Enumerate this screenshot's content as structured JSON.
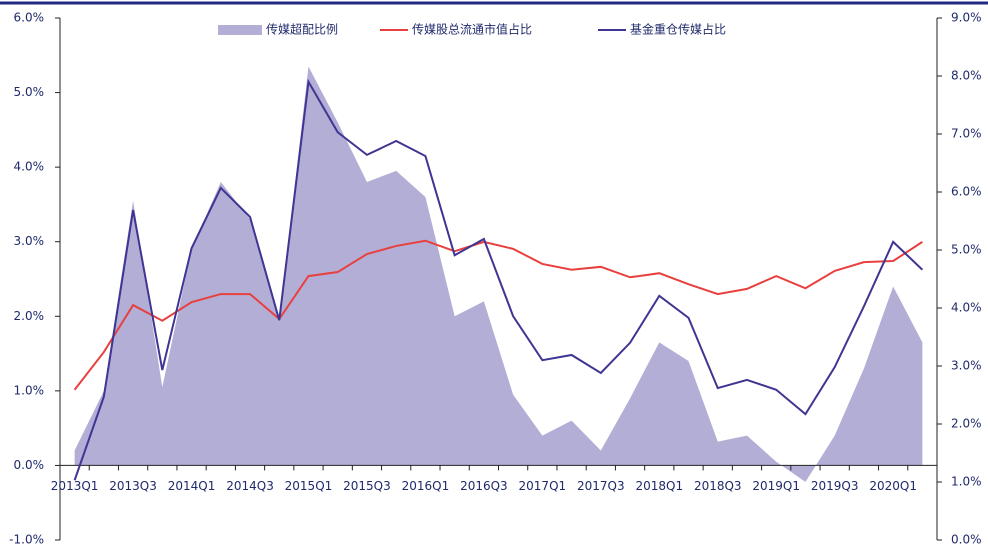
{
  "chart_data": {
    "type": "line",
    "categories": [
      "2013Q1",
      null,
      "2013Q3",
      null,
      "2014Q1",
      null,
      "2014Q3",
      null,
      "2015Q1",
      null,
      "2015Q3",
      null,
      "2016Q1",
      null,
      "2016Q3",
      null,
      "2017Q1",
      null,
      "2017Q3",
      null,
      "2018Q1",
      null,
      "2018Q3",
      null,
      "2019Q1",
      null,
      "2019Q3",
      null,
      "2020Q1",
      null
    ],
    "series": [
      {
        "name": "传媒超配比例",
        "type": "area",
        "axis": "y",
        "color": "#b3aed6",
        "values": [
          0.2,
          1.0,
          3.55,
          1.05,
          2.9,
          3.8,
          3.3,
          1.95,
          5.35,
          4.6,
          3.8,
          3.95,
          3.6,
          2.0,
          2.2,
          0.95,
          0.4,
          0.6,
          0.2,
          0.9,
          1.65,
          1.4,
          0.32,
          0.4,
          0.05,
          -0.22,
          0.4,
          1.3,
          2.4,
          1.65
        ]
      },
      {
        "name": "传媒股总流通市值占比",
        "type": "line",
        "axis": "y2",
        "color": "#e8403f",
        "values": [
          2.59,
          3.24,
          4.05,
          3.78,
          4.1,
          4.24,
          4.24,
          3.81,
          4.55,
          4.62,
          4.93,
          5.07,
          5.16,
          4.98,
          5.14,
          5.02,
          4.76,
          4.66,
          4.71,
          4.53,
          4.6,
          4.41,
          4.24,
          4.33,
          4.55,
          4.34,
          4.64,
          4.79,
          4.81,
          5.14
        ]
      },
      {
        "name": "基金重仓传媒占比",
        "type": "line",
        "axis": "y2",
        "color": "#3f3592",
        "values": [
          1.03,
          2.47,
          5.69,
          2.93,
          5.03,
          6.07,
          5.57,
          3.79,
          7.9,
          7.03,
          6.64,
          6.88,
          6.62,
          4.91,
          5.19,
          3.86,
          3.1,
          3.19,
          2.88,
          3.4,
          4.21,
          3.83,
          2.62,
          2.76,
          2.59,
          2.17,
          2.98,
          4.03,
          5.14,
          4.66
        ]
      }
    ],
    "ylim": [
      -1,
      6
    ],
    "yticks": [
      {
        "value": -1,
        "label": "-1.0%"
      },
      {
        "value": 0,
        "label": "0.0%"
      },
      {
        "value": 1,
        "label": "1.0%"
      },
      {
        "value": 2,
        "label": "2.0%"
      },
      {
        "value": 3,
        "label": "3.0%"
      },
      {
        "value": 4,
        "label": "4.0%"
      },
      {
        "value": 5,
        "label": "5.0%"
      },
      {
        "value": 6,
        "label": "6.0%"
      }
    ],
    "y2lim": [
      0,
      9
    ],
    "y2ticks": [
      {
        "value": 0,
        "label": "0.0%"
      },
      {
        "value": 1,
        "label": "1.0%"
      },
      {
        "value": 2,
        "label": "2.0%"
      },
      {
        "value": 3,
        "label": "3.0%"
      },
      {
        "value": 4,
        "label": "4.0%"
      },
      {
        "value": 5,
        "label": "5.0%"
      },
      {
        "value": 6,
        "label": "6.0%"
      },
      {
        "value": 7,
        "label": "7.0%"
      },
      {
        "value": 8,
        "label": "8.0%"
      },
      {
        "value": 9,
        "label": "9.0%"
      }
    ],
    "legend": "top",
    "grid": false
  }
}
